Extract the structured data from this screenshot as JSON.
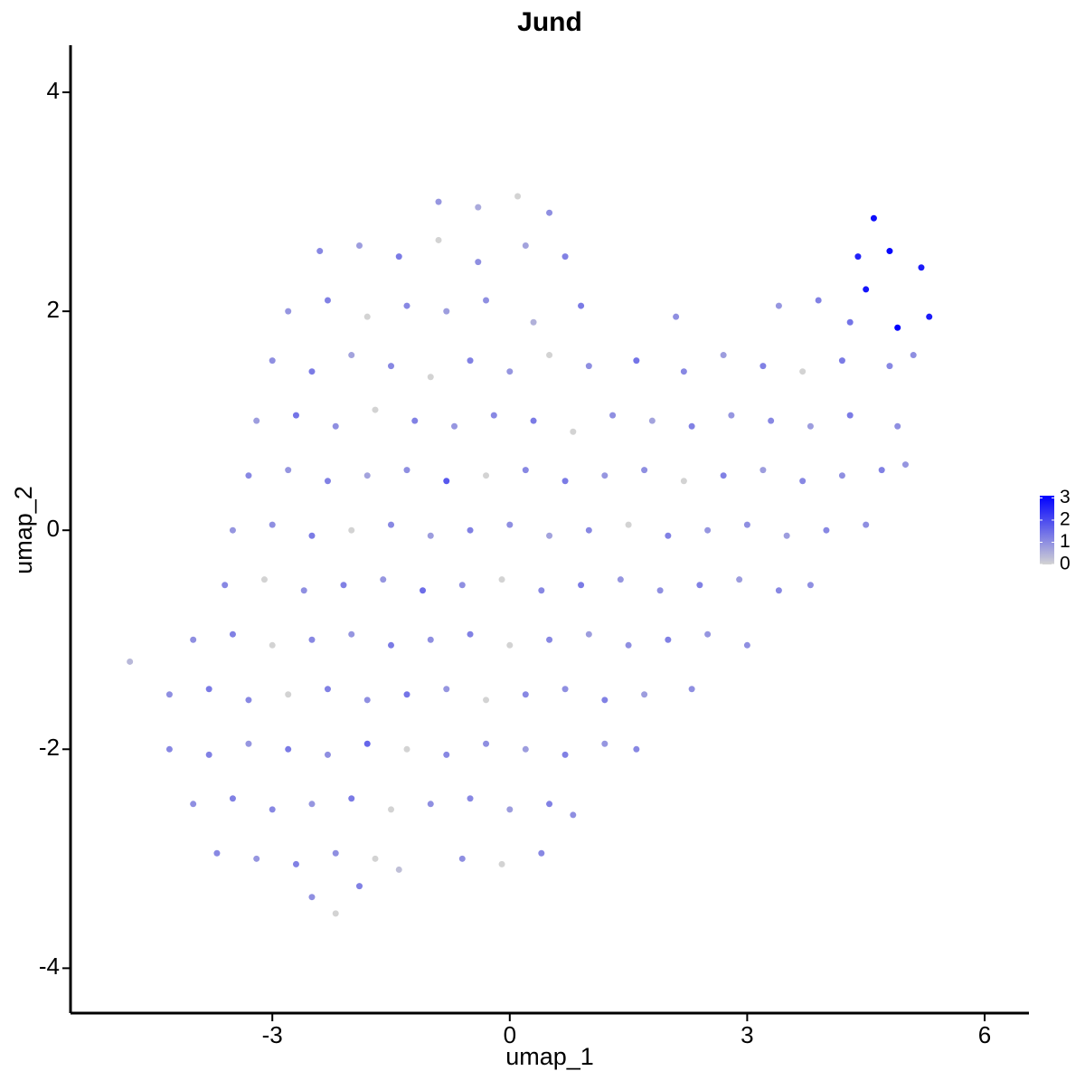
{
  "chart_data": {
    "type": "scatter",
    "title": "Jund",
    "x_label": "umap_1",
    "y_label": "umap_2",
    "xlim": [
      -5.55,
      6.56
    ],
    "ylim": [
      -4.41,
      4.43
    ],
    "xticks": [
      -3,
      0,
      3,
      6
    ],
    "yticks": [
      -4,
      -2,
      0,
      2,
      4
    ],
    "x": [
      -0.9,
      -0.4,
      0.1,
      0.5,
      -2.4,
      -1.9,
      -1.4,
      -0.9,
      -0.4,
      0.2,
      0.7,
      4.4,
      4.6,
      4.8,
      5.2,
      -2.8,
      -2.3,
      -1.8,
      -1.3,
      -0.8,
      -0.3,
      0.3,
      0.9,
      2.1,
      3.4,
      3.9,
      4.5,
      4.9,
      5.3,
      4.3,
      -3.0,
      -2.5,
      -2.0,
      -1.5,
      -1.0,
      -0.5,
      0.0,
      0.5,
      1.0,
      1.6,
      2.2,
      2.7,
      3.2,
      3.7,
      4.2,
      4.8,
      5.1,
      -3.2,
      -2.7,
      -2.2,
      -1.7,
      -1.2,
      -0.7,
      -0.2,
      0.3,
      0.8,
      1.3,
      1.8,
      2.3,
      2.8,
      3.3,
      3.8,
      4.3,
      4.9,
      -3.3,
      -2.8,
      -2.3,
      -1.8,
      -1.3,
      -0.8,
      -0.3,
      0.2,
      0.7,
      1.2,
      1.7,
      2.2,
      2.7,
      3.2,
      3.7,
      4.2,
      4.7,
      5.0,
      -3.5,
      -3.0,
      -2.5,
      -2.0,
      -1.5,
      -1.0,
      -0.5,
      0.0,
      0.5,
      1.0,
      1.5,
      2.0,
      2.5,
      3.0,
      3.5,
      4.0,
      4.5,
      -3.6,
      -3.1,
      -2.6,
      -2.1,
      -1.6,
      -1.1,
      -0.6,
      -0.1,
      0.4,
      0.9,
      1.4,
      1.9,
      2.4,
      2.9,
      3.4,
      3.8,
      -4.0,
      -3.5,
      -3.0,
      -2.5,
      -2.0,
      -1.5,
      -1.0,
      -0.5,
      0.0,
      0.5,
      1.0,
      1.5,
      2.0,
      2.5,
      3.0,
      -4.8,
      -4.3,
      -3.8,
      -3.3,
      -2.8,
      -2.3,
      -1.8,
      -1.3,
      -0.8,
      -0.3,
      0.2,
      0.7,
      1.2,
      1.7,
      2.3,
      -4.3,
      -3.8,
      -3.3,
      -2.8,
      -2.3,
      -1.8,
      -1.3,
      -0.8,
      -0.3,
      0.2,
      0.7,
      1.2,
      1.6,
      -4.0,
      -3.5,
      -3.0,
      -2.5,
      -2.0,
      -1.5,
      -1.0,
      -0.5,
      0.0,
      0.5,
      0.8,
      -3.7,
      -3.2,
      -2.7,
      -2.2,
      -1.7,
      -1.4,
      -0.6,
      -0.1,
      0.4,
      -2.5,
      -2.2,
      -1.9
    ],
    "y": [
      3.0,
      2.95,
      3.05,
      2.9,
      2.55,
      2.6,
      2.5,
      2.65,
      2.45,
      2.6,
      2.5,
      2.5,
      2.85,
      2.55,
      2.4,
      2.0,
      2.1,
      1.95,
      2.05,
      2.0,
      2.1,
      1.9,
      2.05,
      1.95,
      2.05,
      2.1,
      2.2,
      1.85,
      1.95,
      1.9,
      1.55,
      1.45,
      1.6,
      1.5,
      1.4,
      1.55,
      1.45,
      1.6,
      1.5,
      1.55,
      1.45,
      1.6,
      1.5,
      1.45,
      1.55,
      1.5,
      1.6,
      1.0,
      1.05,
      0.95,
      1.1,
      1.0,
      0.95,
      1.05,
      1.0,
      0.9,
      1.05,
      1.0,
      0.95,
      1.05,
      1.0,
      0.95,
      1.05,
      0.95,
      0.5,
      0.55,
      0.45,
      0.5,
      0.55,
      0.45,
      0.5,
      0.55,
      0.45,
      0.5,
      0.55,
      0.45,
      0.5,
      0.55,
      0.45,
      0.5,
      0.55,
      0.6,
      0.0,
      0.05,
      -0.05,
      0.0,
      0.05,
      -0.05,
      0.0,
      0.05,
      -0.05,
      0.0,
      0.05,
      -0.05,
      0.0,
      0.05,
      -0.05,
      0.0,
      0.05,
      -0.5,
      -0.45,
      -0.55,
      -0.5,
      -0.45,
      -0.55,
      -0.5,
      -0.45,
      -0.55,
      -0.5,
      -0.45,
      -0.55,
      -0.5,
      -0.45,
      -0.55,
      -0.5,
      -1.0,
      -0.95,
      -1.05,
      -1.0,
      -0.95,
      -1.05,
      -1.0,
      -0.95,
      -1.05,
      -1.0,
      -0.95,
      -1.05,
      -1.0,
      -0.95,
      -1.05,
      -1.2,
      -1.5,
      -1.45,
      -1.55,
      -1.5,
      -1.45,
      -1.55,
      -1.5,
      -1.45,
      -1.55,
      -1.5,
      -1.45,
      -1.55,
      -1.5,
      -1.45,
      -2.0,
      -2.05,
      -1.95,
      -2.0,
      -2.05,
      -1.95,
      -2.0,
      -2.05,
      -1.95,
      -2.0,
      -2.05,
      -1.95,
      -2.0,
      -2.5,
      -2.45,
      -2.55,
      -2.5,
      -2.45,
      -2.55,
      -2.5,
      -2.45,
      -2.55,
      -2.5,
      -2.6,
      -2.95,
      -3.0,
      -3.05,
      -2.95,
      -3.0,
      -3.1,
      -3.0,
      -3.05,
      -2.95,
      -3.35,
      -3.5,
      -3.25
    ],
    "values": [
      0.9,
      0.6,
      0,
      1.0,
      1.1,
      0.8,
      1.3,
      0,
      1.0,
      0.7,
      1.2,
      2.6,
      2.9,
      3.0,
      2.7,
      0.9,
      1.2,
      0,
      1.1,
      0.8,
      1.0,
      0.5,
      1.3,
      1.0,
      0.9,
      1.2,
      2.8,
      3.1,
      2.7,
      1.4,
      1.0,
      1.3,
      0.7,
      1.1,
      0,
      1.2,
      0.9,
      0,
      1.0,
      1.4,
      1.1,
      0.8,
      1.2,
      0,
      1.3,
      1.1,
      1.0,
      0.8,
      1.4,
      1.0,
      0,
      1.2,
      0.9,
      1.1,
      1.3,
      0,
      1.0,
      0.7,
      1.2,
      0.9,
      1.1,
      0.8,
      1.3,
      1.0,
      1.1,
      0.9,
      1.2,
      0.7,
      1.0,
      1.8,
      0,
      1.1,
      1.3,
      0.9,
      1.0,
      0,
      1.2,
      0.8,
      1.1,
      1.0,
      1.2,
      0.9,
      0.9,
      1.0,
      1.3,
      0,
      1.1,
      0.8,
      1.2,
      1.0,
      0.7,
      1.1,
      0,
      1.2,
      0.9,
      1.0,
      0.8,
      1.1,
      1.0,
      1.1,
      0,
      1.0,
      1.2,
      0.9,
      1.5,
      1.0,
      0,
      1.1,
      1.3,
      0.9,
      1.0,
      1.2,
      0.8,
      1.1,
      1.0,
      1.0,
      1.2,
      0,
      1.1,
      0.9,
      1.3,
      1.0,
      1.2,
      0,
      1.1,
      0.8,
      1.0,
      1.2,
      0.9,
      1.0,
      0.4,
      1.0,
      1.3,
      1.1,
      0,
      1.2,
      1.0,
      1.4,
      0.9,
      0,
      1.1,
      1.0,
      1.2,
      0.8,
      1.0,
      1.1,
      1.2,
      0.9,
      1.3,
      1.0,
      1.6,
      0,
      1.1,
      1.0,
      0.8,
      1.2,
      0.9,
      1.1,
      1.0,
      1.2,
      1.1,
      0.9,
      1.3,
      0,
      1.0,
      1.1,
      0.8,
      1.2,
      1.0,
      1.1,
      0.9,
      1.2,
      1.0,
      0,
      0.3,
      1.0,
      0,
      1.1,
      1.0,
      0,
      1.2
    ],
    "color_scale": {
      "low": "#d3d3d3",
      "high": "#0000ff",
      "lim": [
        0,
        3.1
      ],
      "ticks": [
        0,
        1,
        2,
        3
      ]
    },
    "legend": "right"
  }
}
